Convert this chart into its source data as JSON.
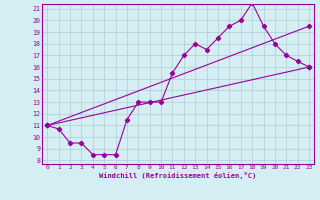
{
  "xlabel": "Windchill (Refroidissement éolien,°C)",
  "bg_color": "#d4eef4",
  "grid_color": "#b0ccd4",
  "line_color": "#990099",
  "xlim": [
    -0.5,
    23.4
  ],
  "ylim": [
    7.7,
    21.4
  ],
  "xticks": [
    0,
    1,
    2,
    3,
    4,
    5,
    6,
    7,
    8,
    9,
    10,
    11,
    12,
    13,
    14,
    15,
    16,
    17,
    18,
    19,
    20,
    21,
    22,
    23
  ],
  "yticks": [
    8,
    9,
    10,
    11,
    12,
    13,
    14,
    15,
    16,
    17,
    18,
    19,
    20,
    21
  ],
  "line1_x": [
    0,
    1,
    2,
    3,
    4,
    5,
    6,
    7,
    8,
    9,
    10,
    11,
    12,
    13,
    14,
    15,
    16,
    17,
    18,
    19,
    20,
    21,
    22,
    23
  ],
  "line1_y": [
    11,
    10.7,
    9.5,
    9.5,
    8.5,
    8.5,
    8.5,
    11.5,
    13.0,
    13.0,
    13.0,
    15.5,
    17.0,
    18.0,
    17.5,
    18.5,
    19.5,
    20.0,
    21.5,
    19.5,
    18.0,
    17.0,
    16.5,
    16.0
  ],
  "line2_x": [
    0,
    23
  ],
  "line2_y": [
    11,
    16.0
  ],
  "line3_x": [
    0,
    23
  ],
  "line3_y": [
    11,
    19.5
  ]
}
